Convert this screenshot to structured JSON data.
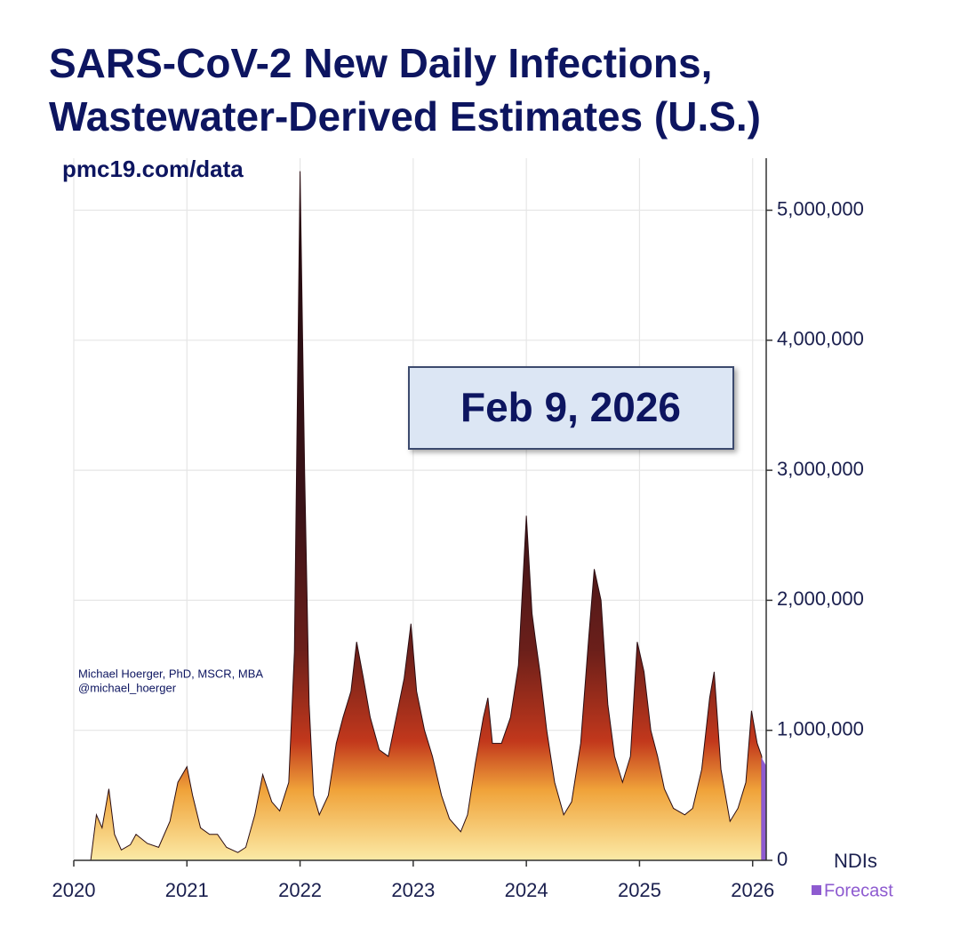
{
  "chart_data": {
    "type": "area",
    "title": "SARS-CoV-2 New Daily Infections,",
    "title_line2": "Wastewater-Derived Estimates (U.S.)",
    "subtitle": "pmc19.com/data",
    "credit": "Michael Hoerger, PhD, MSCR, MBA",
    "credit_handle": "@michael_hoerger",
    "annotation": "Feb 9, 2026",
    "y_label": "NDIs",
    "xlim": [
      2020,
      2026.12
    ],
    "xticks": [
      2020,
      2021,
      2022,
      2023,
      2024,
      2025,
      2026
    ],
    "ylim": [
      0,
      5400000
    ],
    "yticks": [
      0,
      {
        "value": 1000000,
        "label": "1,000,000"
      },
      {
        "value": 2000000,
        "label": "2,000,000"
      },
      {
        "value": 3000000,
        "label": "3,000,000"
      },
      {
        "value": 4000000,
        "label": "4,000,000"
      },
      {
        "value": 5000000,
        "label": "5,000,000"
      }
    ],
    "grid": true,
    "series": [
      {
        "color": "#2b0d12",
        "x": [
          2020.15,
          2020.2,
          2020.25,
          2020.31,
          2020.36,
          2020.42,
          2020.5,
          2020.55,
          2020.65,
          2020.75,
          2020.85,
          2020.92,
          2021.0,
          2021.05,
          2021.12,
          2021.2,
          2021.27,
          2021.35,
          2021.45,
          2021.52,
          2021.6,
          2021.67,
          2021.75,
          2021.82,
          2021.9,
          2021.95,
          2022.0,
          2022.04,
          2022.08,
          2022.12,
          2022.17,
          2022.25,
          2022.32,
          2022.38,
          2022.45,
          2022.5,
          2022.56,
          2022.62,
          2022.7,
          2022.78,
          2022.85,
          2022.92,
          2022.98,
          2023.03,
          2023.1,
          2023.17,
          2023.25,
          2023.32,
          2023.42,
          2023.48,
          2023.55,
          2023.62,
          2023.66,
          2023.7,
          2023.78,
          2023.86,
          2023.93,
          2024.0,
          2024.05,
          2024.08,
          2024.12,
          2024.18,
          2024.25,
          2024.33,
          2024.4,
          2024.48,
          2024.55,
          2024.6,
          2024.66,
          2024.72,
          2024.78,
          2024.85,
          2024.92,
          2024.98,
          2025.04,
          2025.1,
          2025.16,
          2025.22,
          2025.3,
          2025.4,
          2025.47,
          2025.55,
          2025.62,
          2025.66,
          2025.72,
          2025.8,
          2025.87,
          2025.94,
          2025.99,
          2026.04,
          2026.08
        ],
        "values": [
          0,
          350000,
          250000,
          550000,
          200000,
          80000,
          120000,
          200000,
          130000,
          100000,
          300000,
          600000,
          720000,
          500000,
          250000,
          200000,
          200000,
          100000,
          60000,
          100000,
          350000,
          660000,
          450000,
          380000,
          600000,
          1600000,
          5300000,
          3000000,
          1200000,
          500000,
          350000,
          500000,
          900000,
          1100000,
          1300000,
          1680000,
          1400000,
          1100000,
          850000,
          800000,
          1100000,
          1400000,
          1820000,
          1300000,
          1000000,
          800000,
          500000,
          320000,
          220000,
          350000,
          750000,
          1100000,
          1250000,
          900000,
          900000,
          1100000,
          1500000,
          2650000,
          1900000,
          1700000,
          1450000,
          1000000,
          600000,
          350000,
          450000,
          900000,
          1700000,
          2240000,
          2000000,
          1200000,
          800000,
          600000,
          800000,
          1680000,
          1450000,
          1000000,
          800000,
          550000,
          400000,
          350000,
          400000,
          700000,
          1250000,
          1450000,
          700000,
          300000,
          400000,
          600000,
          1150000,
          900000,
          800000
        ]
      },
      {
        "name": "Forecast",
        "color": "#8e5bd0",
        "x": [
          2026.08,
          2026.12
        ],
        "values": [
          780000,
          720000
        ]
      }
    ]
  }
}
